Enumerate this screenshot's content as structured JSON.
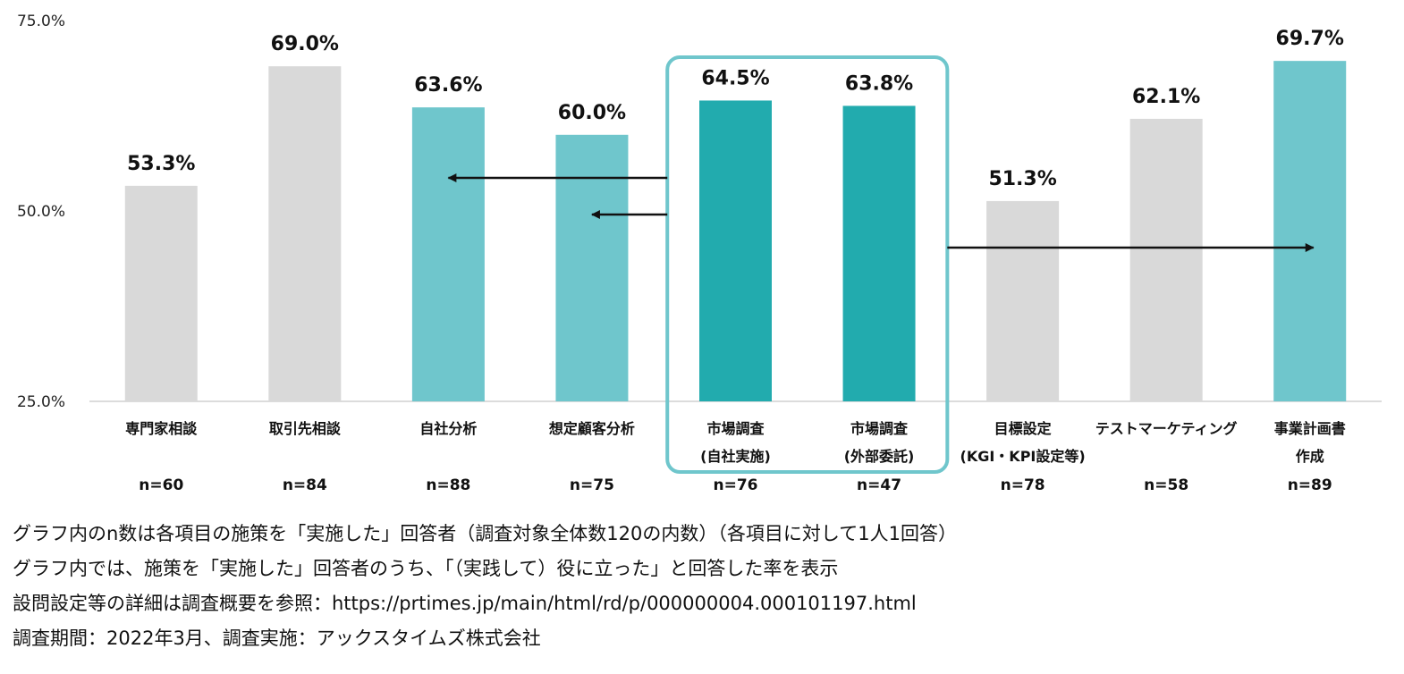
{
  "chart_data": {
    "type": "bar",
    "title": "",
    "xlabel": "",
    "ylabel": "",
    "ylim": [
      25,
      75
    ],
    "yticks": [
      "75.0%",
      "50.0%",
      "25.0%"
    ],
    "ytick_values": [
      75,
      50,
      25
    ],
    "grid": false,
    "categories": [
      {
        "lines": [
          "専門家相談"
        ],
        "n": "n=60",
        "value": 53.3,
        "label": "53.3%",
        "color": "#d9d9d9"
      },
      {
        "lines": [
          "取引先相談"
        ],
        "n": "n=84",
        "value": 69.0,
        "label": "69.0%",
        "color": "#d9d9d9"
      },
      {
        "lines": [
          "自社分析"
        ],
        "n": "n=88",
        "value": 63.6,
        "label": "63.6%",
        "color": "#6fc6cc"
      },
      {
        "lines": [
          "想定顧客分析"
        ],
        "n": "n=75",
        "value": 60.0,
        "label": "60.0%",
        "color": "#6fc6cc"
      },
      {
        "lines": [
          "市場調査",
          "(自社実施)"
        ],
        "n": "n=76",
        "value": 64.5,
        "label": "64.5%",
        "color": "#22abae"
      },
      {
        "lines": [
          "市場調査",
          "(外部委託)"
        ],
        "n": "n=47",
        "value": 63.8,
        "label": "63.8%",
        "color": "#22abae"
      },
      {
        "lines": [
          "目標設定",
          "(KGI・KPI設定等)"
        ],
        "n": "n=78",
        "value": 51.3,
        "label": "51.3%",
        "color": "#d9d9d9"
      },
      {
        "lines": [
          "テストマーケティング"
        ],
        "n": "n=58",
        "value": 62.1,
        "label": "62.1%",
        "color": "#d9d9d9"
      },
      {
        "lines": [
          "事業計画書",
          "作成"
        ],
        "n": "n=89",
        "value": 69.7,
        "label": "69.7%",
        "color": "#6fc6cc"
      }
    ],
    "highlight": {
      "from_index": 4,
      "to_index": 5,
      "color": "#6fc6cc"
    },
    "arrows": [
      {
        "from_index": 4,
        "to_index": 2
      },
      {
        "from_index": 4,
        "to_index": 3
      },
      {
        "from_index": 5,
        "to_index": 8
      }
    ]
  },
  "notes": [
    "グラフ内のn数は各項目の施策を「実施した」回答者（調査対象全体数120の内数）（各項目に対して1人1回答）",
    "グラフ内では、施策を「実施した」回答者のうち、「（実践して）役に立った」と回答した率を表示",
    "設問設定等の詳細は調査概要を参照：https://prtimes.jp/main/html/rd/p/000000004.000101197.html",
    "調査期間：2022年3月、調査実施：アックスタイムズ株式会社"
  ]
}
